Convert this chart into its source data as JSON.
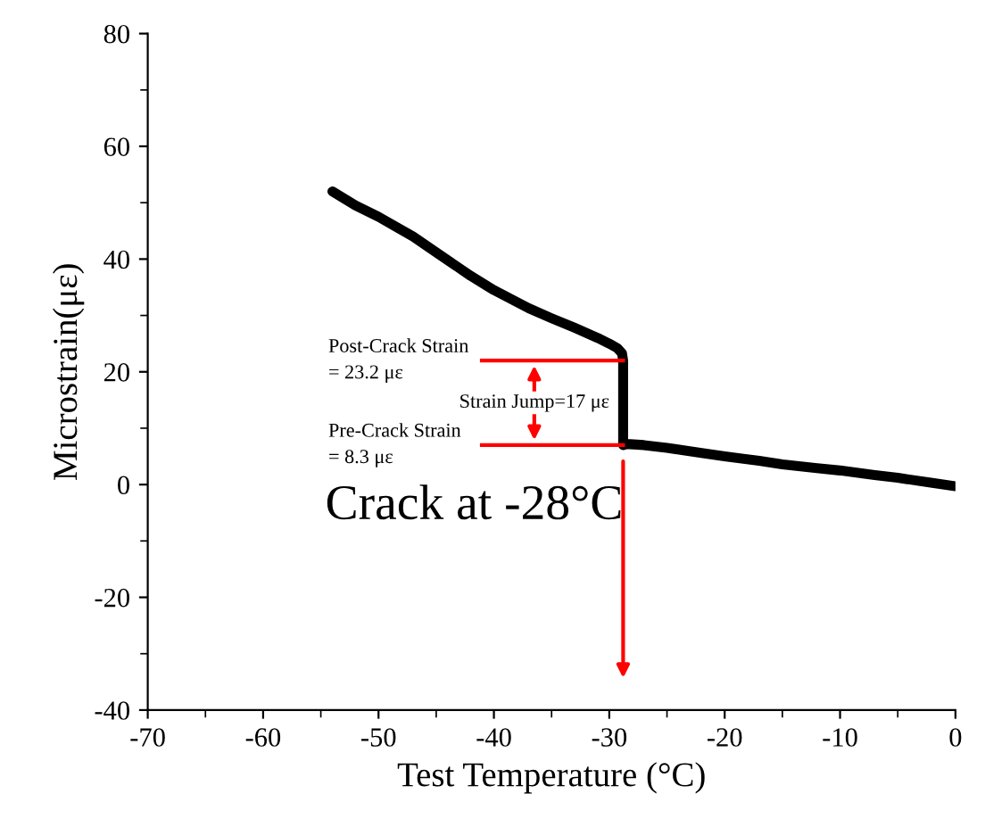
{
  "chart_data": {
    "type": "line",
    "xlabel": "Test Temperature (°C)",
    "ylabel": "Microstrain(με)",
    "x": [
      -54,
      -52,
      -50,
      -47,
      -45,
      -42,
      -40,
      -37,
      -35,
      -33,
      -31,
      -30,
      -29.3,
      -28.9,
      -28.8,
      -28.8,
      -28.5,
      -27,
      -25,
      -22,
      -20,
      -17,
      -15,
      -12,
      -10,
      -7,
      -5,
      -2,
      0
    ],
    "series": [
      {
        "color": "#000000",
        "values": [
          52,
          49.5,
          47.5,
          44,
          41.2,
          37,
          34.5,
          31.3,
          29.5,
          27.8,
          26,
          25,
          24.2,
          23.3,
          22,
          7,
          7.2,
          7,
          6.5,
          5.6,
          5,
          4.2,
          3.6,
          2.9,
          2.5,
          1.7,
          1.2,
          0.3,
          -0.3
        ]
      }
    ],
    "xlim": [
      -70,
      0
    ],
    "ylim": [
      -40,
      80
    ],
    "xticks": [
      -70,
      -60,
      -50,
      -40,
      -30,
      -20,
      -10,
      0
    ],
    "yticks": [
      -40,
      -20,
      0,
      20,
      40,
      60,
      80
    ],
    "grid": false,
    "legend": false,
    "marker": "none",
    "line_style": "solid",
    "annotations": [
      {
        "text": "Post-Crack Strain\n= 23.2 με",
        "x": -28.8,
        "y": 22
      },
      {
        "text": "Pre-Crack Strain\n= 8.3 με",
        "x": -28.8,
        "y": 7
      },
      "Strain Jump=17 με",
      "Crack at -28°C"
    ]
  }
}
